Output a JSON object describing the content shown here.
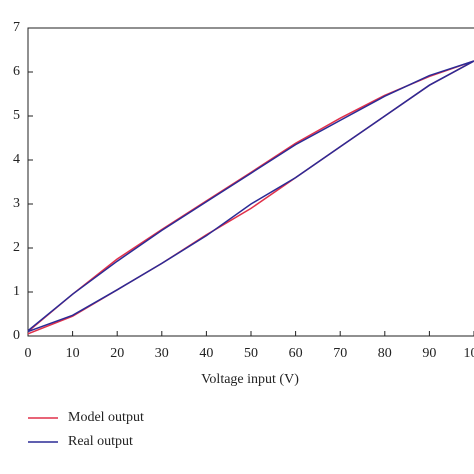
{
  "chart_data": {
    "type": "line",
    "x_label": "Voltage input (V)",
    "x": [
      0,
      10,
      20,
      30,
      40,
      50,
      60,
      70,
      80,
      90,
      100,
      90,
      80,
      70,
      60,
      50,
      40,
      30,
      20,
      10,
      0
    ],
    "series": [
      {
        "name": "Model output",
        "color": "#e0304a",
        "values": [
          0.05,
          0.45,
          1.05,
          1.65,
          2.3,
          2.9,
          3.6,
          4.3,
          5.0,
          5.7,
          6.25,
          5.9,
          5.47,
          4.95,
          4.38,
          3.72,
          3.07,
          2.42,
          1.75,
          0.95,
          0.1
        ]
      },
      {
        "name": "Real output",
        "color": "#2b2b96",
        "values": [
          0.1,
          0.47,
          1.05,
          1.65,
          2.28,
          3.0,
          3.6,
          4.3,
          5.0,
          5.7,
          6.25,
          5.92,
          5.45,
          4.9,
          4.35,
          3.7,
          3.05,
          2.4,
          1.7,
          0.95,
          0.12
        ]
      }
    ],
    "xlim": [
      0,
      100
    ],
    "xticks": [
      0,
      10,
      20,
      30,
      40,
      50,
      60,
      70,
      80,
      90,
      100
    ],
    "ylim": [
      0,
      7
    ],
    "yticks": [
      0,
      1,
      2,
      3,
      4,
      5,
      6,
      7
    ],
    "grid": false,
    "legend": "bottom-left"
  }
}
